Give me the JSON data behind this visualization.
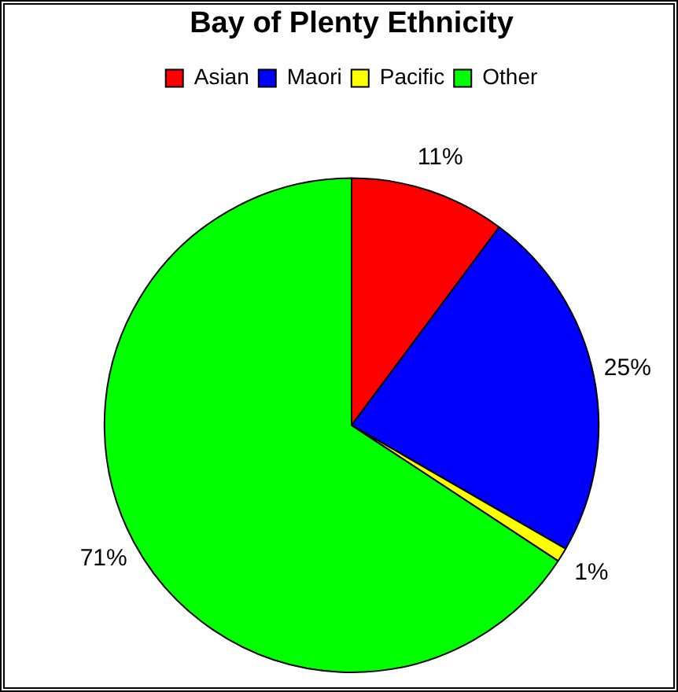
{
  "chart_data": {
    "type": "pie",
    "title": "Bay of Plenty Ethnicity",
    "categories": [
      "Asian",
      "Maori",
      "Pacific",
      "Other"
    ],
    "values": [
      11,
      25,
      1,
      71
    ],
    "value_labels": [
      "11%",
      "25%",
      "1%",
      "71%"
    ],
    "colors": [
      "#ff0000",
      "#0000ff",
      "#ffff00",
      "#00ff00"
    ],
    "legend": "top"
  }
}
